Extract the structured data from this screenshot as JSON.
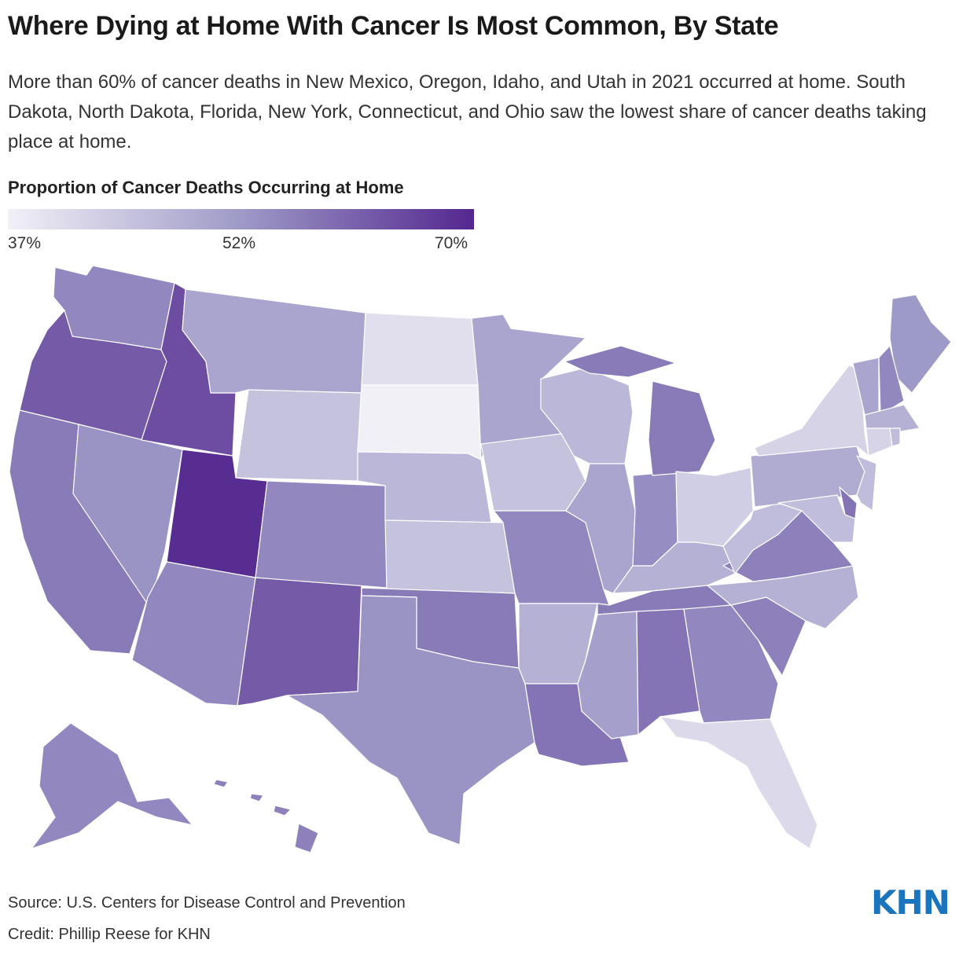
{
  "title": "Where Dying at Home With Cancer Is Most Common, By State",
  "subtitle": "More than 60% of cancer deaths in New Mexico, Oregon, Idaho, and Utah in 2021 occurred at home. South Dakota, North Dakota, Florida, New York, Connecticut, and Ohio saw the lowest share of cancer deaths taking place at home.",
  "legend": {
    "title": "Proportion of Cancer Deaths Occurring at Home",
    "min_label": "37%",
    "mid_label": "52%",
    "max_label": "70%",
    "min": 37,
    "mid": 52,
    "max": 70,
    "color_low": "#f2f0f7",
    "color_mid": "#9e9ac8",
    "color_high": "#54278f"
  },
  "chart_data": {
    "type": "choropleth",
    "metric": "Proportion of Cancer Deaths Occurring at Home",
    "unit": "%",
    "year": 2021,
    "values": {
      "WA": 55,
      "OR": 62,
      "CA": 57,
      "NV": 53,
      "ID": 64,
      "MT": 50,
      "WY": 45,
      "UT": 69,
      "AZ": 55,
      "NM": 62,
      "CO": 55,
      "ND": 40,
      "SD": 37,
      "NE": 47,
      "KS": 45,
      "OK": 57,
      "TX": 53,
      "MN": 50,
      "IA": 45,
      "MO": 55,
      "AR": 48,
      "LA": 58,
      "WI": 47,
      "IL": 50,
      "IN": 54,
      "MI": 57,
      "OH": 43,
      "KY": 48,
      "TN": 57,
      "MS": 51,
      "AL": 58,
      "GA": 55,
      "FL": 41,
      "SC": 56,
      "NC": 48,
      "VA": 56,
      "WV": 46,
      "PA": 49,
      "NY": 42,
      "ME": 52,
      "VT": 50,
      "NH": 55,
      "MA": 48,
      "CT": 42,
      "RI": 46,
      "NJ": 46,
      "DE": 58,
      "MD": 46,
      "AK": 55,
      "HI": 56
    }
  },
  "footer": {
    "source": "Source: U.S. Centers for Disease Control and Prevention",
    "credit": "Credit: Phillip Reese for KHN",
    "logo": "KHN",
    "logo_color": "#1b75bc"
  }
}
